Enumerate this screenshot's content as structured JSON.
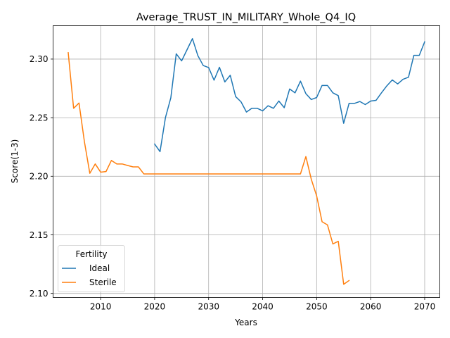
{
  "chart_data": {
    "type": "line",
    "title": "Average_TRUST_IN_MILITARY_Whole_Q4_IQ",
    "xlabel": "Years",
    "ylabel": "Score(1-3)",
    "xlim": [
      2001.2,
      2072.8
    ],
    "ylim": [
      2.0965,
      2.3285
    ],
    "xticks": [
      2010,
      2020,
      2030,
      2040,
      2050,
      2060,
      2070
    ],
    "yticks": [
      2.1,
      2.15,
      2.2,
      2.25,
      2.3
    ],
    "xtick_labels": [
      "2010",
      "2020",
      "2030",
      "2040",
      "2050",
      "2060",
      "2070"
    ],
    "ytick_labels": [
      "2.10",
      "2.15",
      "2.20",
      "2.25",
      "2.30"
    ],
    "grid": true,
    "legend": {
      "title": "Fertility",
      "placement": "lower-left"
    },
    "series": [
      {
        "name": "Ideal",
        "color": "#1f77b4",
        "x": [
          2020,
          2021,
          2022,
          2023,
          2024,
          2025,
          2026,
          2027,
          2028,
          2029,
          2030,
          2031,
          2032,
          2033,
          2034,
          2035,
          2036,
          2037,
          2038,
          2039,
          2040,
          2041,
          2042,
          2043,
          2044,
          2045,
          2046,
          2047,
          2048,
          2049,
          2050,
          2051,
          2052,
          2053,
          2054,
          2055,
          2056,
          2057,
          2058,
          2059,
          2060,
          2061,
          2062,
          2063,
          2064,
          2065,
          2066,
          2067,
          2068,
          2069,
          2070
        ],
        "y": [
          2.2275,
          2.221,
          2.25,
          2.267,
          2.3045,
          2.2985,
          2.308,
          2.3175,
          2.303,
          2.2945,
          2.2928,
          2.282,
          2.293,
          2.2805,
          2.2862,
          2.268,
          2.2635,
          2.2548,
          2.258,
          2.258,
          2.2558,
          2.2602,
          2.258,
          2.2642,
          2.2585,
          2.2745,
          2.2712,
          2.2812,
          2.2705,
          2.2655,
          2.2672,
          2.2775,
          2.2775,
          2.2712,
          2.2688,
          2.2452,
          2.2622,
          2.2622,
          2.2638,
          2.2612,
          2.2642,
          2.2648,
          2.2712,
          2.2772,
          2.2822,
          2.2788,
          2.2828,
          2.2845,
          2.3032,
          2.3032,
          2.3148
        ]
      },
      {
        "name": "Sterile",
        "color": "#ff7f0e",
        "x": [
          2004,
          2005,
          2006,
          2007,
          2008,
          2009,
          2010,
          2011,
          2012,
          2013,
          2014,
          2015,
          2016,
          2017,
          2018,
          2019,
          2020,
          2021,
          2022,
          2023,
          2024,
          2025,
          2026,
          2027,
          2028,
          2029,
          2030,
          2031,
          2032,
          2033,
          2034,
          2035,
          2036,
          2037,
          2038,
          2039,
          2040,
          2041,
          2042,
          2043,
          2044,
          2045,
          2046,
          2047,
          2048,
          2049,
          2050,
          2051,
          2052,
          2053,
          2054,
          2055,
          2056
        ],
        "y": [
          2.3055,
          2.258,
          2.2625,
          2.2295,
          2.2025,
          2.2105,
          2.2035,
          2.204,
          2.2135,
          2.2105,
          2.2105,
          2.2092,
          2.208,
          2.208,
          2.202,
          2.202,
          2.202,
          2.202,
          2.202,
          2.202,
          2.202,
          2.202,
          2.202,
          2.202,
          2.202,
          2.202,
          2.202,
          2.202,
          2.202,
          2.202,
          2.202,
          2.202,
          2.202,
          2.202,
          2.202,
          2.202,
          2.202,
          2.202,
          2.202,
          2.202,
          2.202,
          2.202,
          2.202,
          2.202,
          2.2168,
          2.1975,
          2.1832,
          2.1612,
          2.1585,
          2.1422,
          2.1445,
          2.1078,
          2.111
        ]
      }
    ]
  }
}
